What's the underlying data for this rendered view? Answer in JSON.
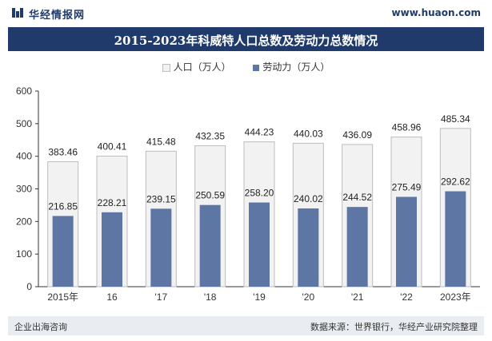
{
  "header": {
    "brand": "华经情报网",
    "site": "www.huaon.com"
  },
  "chart_data": {
    "type": "bar",
    "title": "2015-2023年科威特人口总数及劳动力总数情况",
    "categories": [
      "2015年",
      "16",
      "'17",
      "'18",
      "'19",
      "'20",
      "'21",
      "'22",
      "2023年"
    ],
    "series": [
      {
        "name": "人口（万人）",
        "values": [
          383.46,
          400.41,
          415.48,
          432.35,
          444.23,
          440.03,
          436.09,
          458.96,
          485.34
        ],
        "color": "#f2f2f2",
        "stroke": "#bdbdbd"
      },
      {
        "name": "劳动力（万人）",
        "values": [
          216.85,
          228.21,
          239.15,
          250.59,
          258.2,
          240.02,
          244.52,
          275.49,
          292.62
        ],
        "color": "#5d76a3"
      }
    ],
    "yticks": [
      0,
      100,
      200,
      300,
      400,
      500,
      600
    ],
    "ylim": [
      0,
      600
    ],
    "legend_position": "top-center"
  },
  "footer": {
    "left": "企业出海咨询",
    "right": "数据来源：世界银行，华经产业研究院整理"
  }
}
